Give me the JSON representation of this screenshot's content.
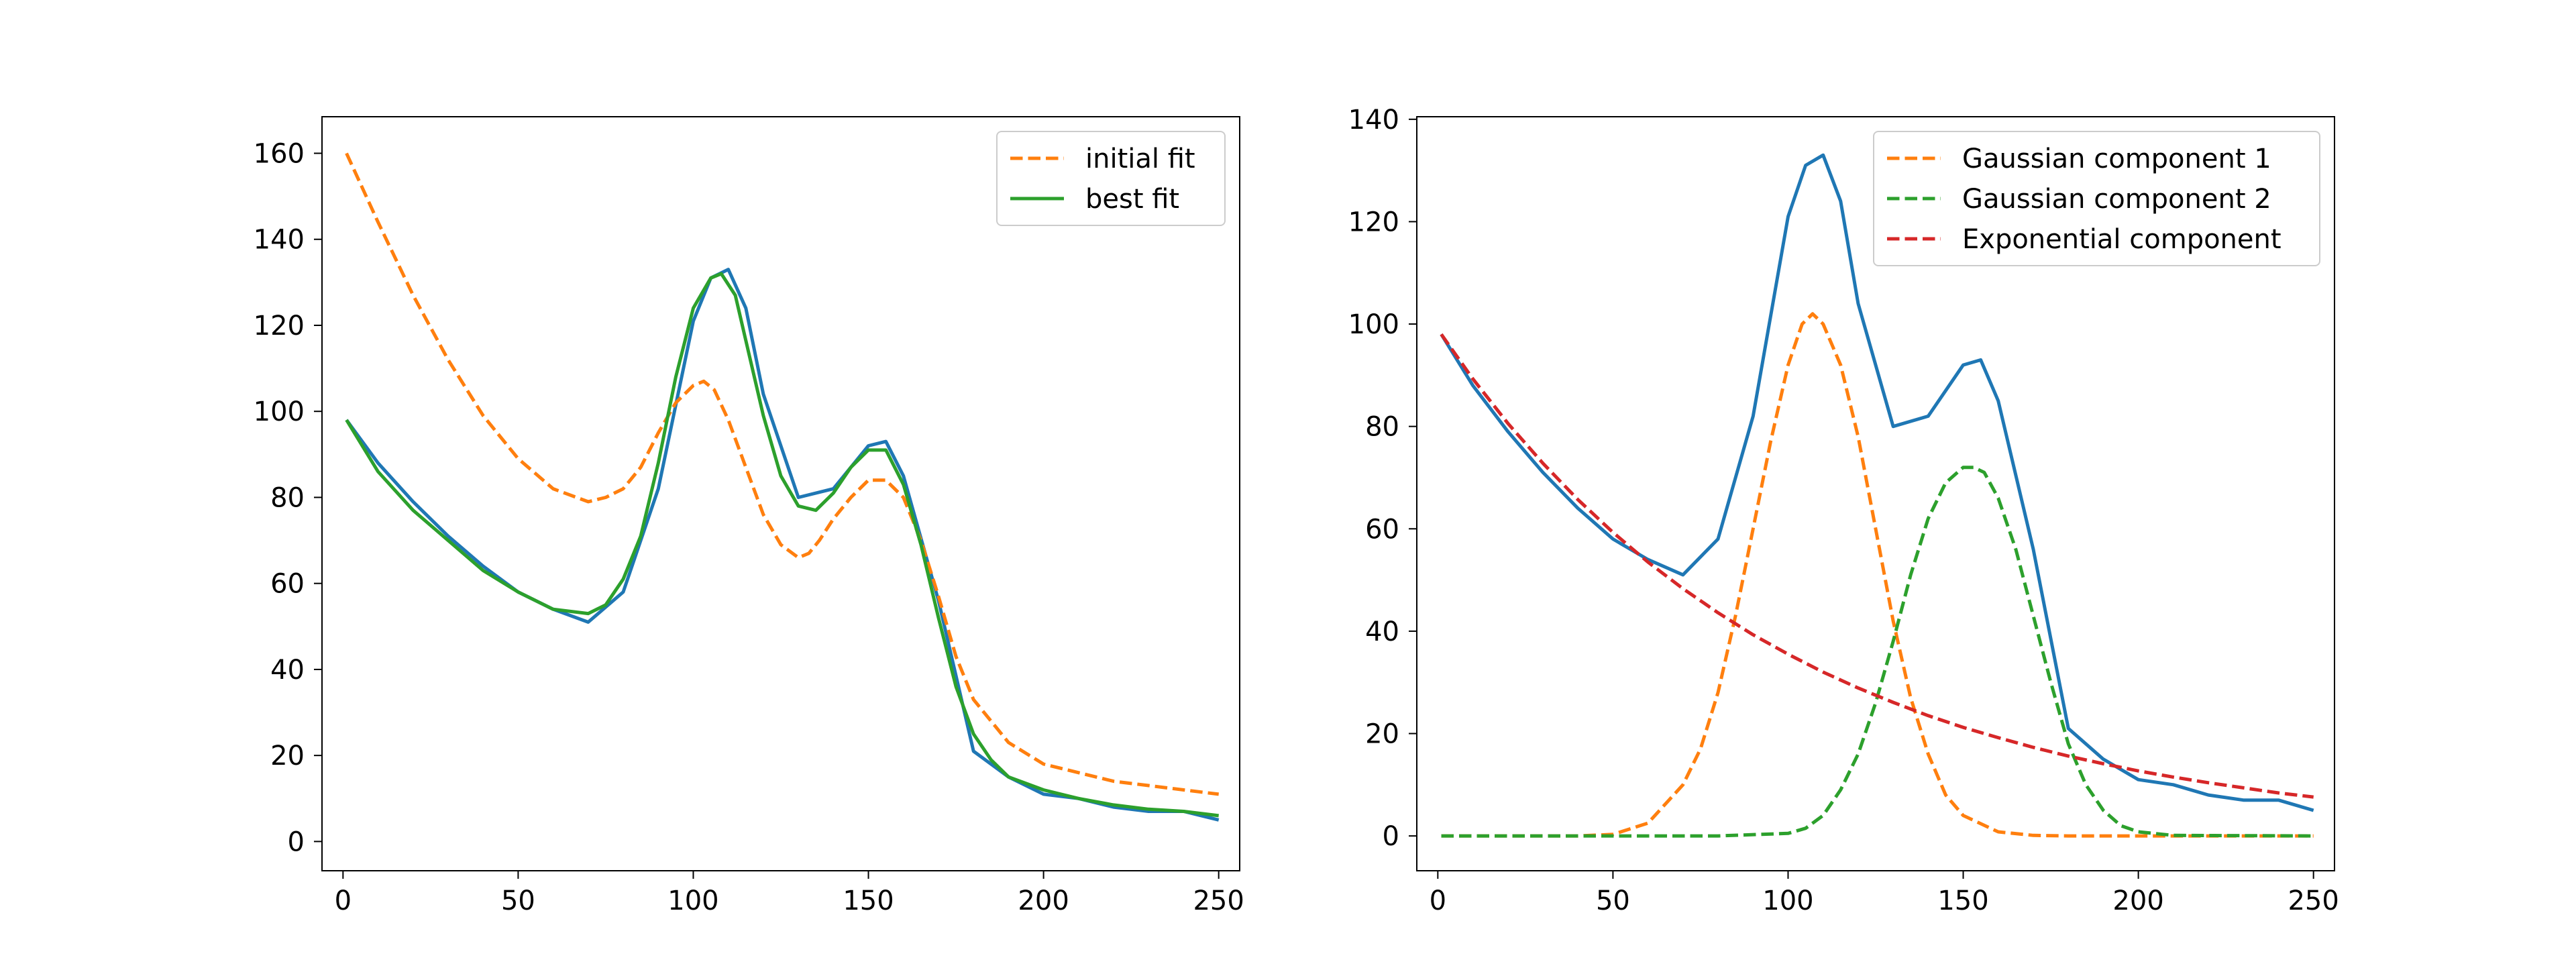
{
  "colors": {
    "data": "#1f77b4",
    "orange": "#ff7f0e",
    "green": "#2ca02c",
    "red": "#d62728",
    "axes": "#000000",
    "background": "#ffffff"
  },
  "chart_data": [
    {
      "type": "line",
      "title": "",
      "xlabel": "",
      "ylabel": "",
      "xlim": [
        -6,
        256
      ],
      "ylim": [
        -6.8,
        168.5
      ],
      "xticks": [
        0,
        50,
        100,
        150,
        200,
        250
      ],
      "yticks": [
        0,
        20,
        40,
        60,
        80,
        100,
        120,
        140,
        160
      ],
      "xtick_labels": [
        "0",
        "50",
        "100",
        "150",
        "200",
        "250"
      ],
      "ytick_labels": [
        "0",
        "20",
        "40",
        "60",
        "80",
        "100",
        "120",
        "140",
        "160"
      ],
      "grid": false,
      "legend_position": "top-right",
      "series": [
        {
          "role": "data",
          "color": "#1f77b4",
          "style": "solid",
          "x": [
            1,
            10,
            20,
            30,
            40,
            50,
            60,
            70,
            80,
            90,
            100,
            105,
            110,
            115,
            120,
            130,
            140,
            150,
            155,
            160,
            170,
            180,
            190,
            200,
            210,
            220,
            230,
            240,
            250
          ],
          "y": [
            98,
            88,
            79,
            71,
            64,
            58,
            54,
            51,
            58,
            82,
            121,
            131,
            133,
            124,
            104,
            80,
            82,
            92,
            93,
            85,
            56,
            21,
            15,
            11,
            10,
            8,
            7,
            7,
            5
          ]
        },
        {
          "name": "initial fit",
          "color": "#ff7f0e",
          "style": "dashed",
          "x": [
            1,
            10,
            20,
            30,
            40,
            50,
            60,
            70,
            75,
            80,
            85,
            90,
            95,
            100,
            103,
            106,
            110,
            115,
            120,
            125,
            130,
            133,
            136,
            140,
            145,
            150,
            155,
            160,
            165,
            170,
            175,
            180,
            190,
            200,
            210,
            220,
            230,
            240,
            250
          ],
          "y": [
            160,
            144,
            127,
            112,
            99,
            89,
            82,
            79,
            80,
            82,
            87,
            95,
            102,
            106,
            107,
            105,
            98,
            87,
            76,
            69,
            66,
            67,
            70,
            75,
            80,
            84,
            84,
            80,
            70,
            57,
            43,
            33,
            23,
            18,
            16,
            14,
            13,
            12,
            11
          ]
        },
        {
          "name": "best fit",
          "color": "#2ca02c",
          "style": "solid",
          "x": [
            1,
            10,
            20,
            30,
            40,
            50,
            60,
            70,
            75,
            80,
            85,
            90,
            95,
            100,
            105,
            108,
            112,
            116,
            120,
            125,
            130,
            135,
            140,
            145,
            150,
            155,
            160,
            165,
            170,
            175,
            180,
            185,
            190,
            200,
            210,
            220,
            230,
            240,
            250
          ],
          "y": [
            98,
            86,
            77,
            70,
            63,
            58,
            54,
            53,
            55,
            61,
            71,
            88,
            108,
            124,
            131,
            132,
            127,
            113,
            99,
            85,
            78,
            77,
            81,
            87,
            91,
            91,
            83,
            69,
            52,
            36,
            25,
            19,
            15,
            12,
            10,
            8.5,
            7.5,
            7,
            6
          ]
        }
      ],
      "legend": [
        "initial fit",
        "best fit"
      ]
    },
    {
      "type": "line",
      "title": "",
      "xlabel": "",
      "ylabel": "",
      "xlim": [
        -6,
        256
      ],
      "ylim": [
        -6.8,
        140.5
      ],
      "xticks": [
        0,
        50,
        100,
        150,
        200,
        250
      ],
      "yticks": [
        0,
        20,
        40,
        60,
        80,
        100,
        120,
        140
      ],
      "xtick_labels": [
        "0",
        "50",
        "100",
        "150",
        "200",
        "250"
      ],
      "ytick_labels": [
        "0",
        "20",
        "40",
        "60",
        "80",
        "100",
        "120",
        "140"
      ],
      "grid": false,
      "legend_position": "top-right",
      "series": [
        {
          "role": "data",
          "color": "#1f77b4",
          "style": "solid",
          "x": [
            1,
            10,
            20,
            30,
            40,
            50,
            60,
            70,
            80,
            90,
            100,
            105,
            110,
            115,
            120,
            130,
            140,
            150,
            155,
            160,
            170,
            180,
            190,
            200,
            210,
            220,
            230,
            240,
            250
          ],
          "y": [
            98,
            88,
            79,
            71,
            64,
            58,
            54,
            51,
            58,
            82,
            121,
            131,
            133,
            124,
            104,
            80,
            82,
            92,
            93,
            85,
            56,
            21,
            15,
            11,
            10,
            8,
            7,
            7,
            5
          ]
        },
        {
          "name": "Gaussian component 1",
          "color": "#ff7f0e",
          "style": "dashed",
          "x": [
            1,
            20,
            40,
            50,
            60,
            70,
            75,
            80,
            85,
            90,
            95,
            100,
            104,
            107,
            110,
            115,
            120,
            125,
            130,
            135,
            140,
            145,
            150,
            160,
            170,
            180,
            200,
            220,
            250
          ],
          "y": [
            0,
            0,
            0,
            0.3,
            2.5,
            10,
            17,
            28,
            43,
            60,
            77,
            92,
            100,
            102,
            100,
            92,
            78,
            60,
            42,
            27,
            16,
            8,
            4,
            0.8,
            0.1,
            0,
            0,
            0,
            0
          ]
        },
        {
          "name": "Gaussian component 2",
          "color": "#2ca02c",
          "style": "dashed",
          "x": [
            1,
            50,
            80,
            100,
            105,
            110,
            115,
            120,
            125,
            130,
            135,
            140,
            145,
            150,
            153,
            156,
            160,
            165,
            170,
            175,
            180,
            185,
            190,
            195,
            200,
            210,
            250
          ],
          "y": [
            0,
            0,
            0,
            0.5,
            1.5,
            4,
            9,
            16,
            26,
            38,
            51,
            62,
            69,
            72,
            72,
            71,
            66,
            56,
            43,
            30,
            18,
            10,
            5,
            2,
            0.8,
            0.1,
            0
          ]
        },
        {
          "name": "Exponential component",
          "color": "#d62728",
          "style": "dashed",
          "x": [
            1,
            10,
            20,
            30,
            40,
            50,
            60,
            70,
            80,
            90,
            100,
            110,
            120,
            130,
            140,
            150,
            160,
            170,
            180,
            190,
            200,
            210,
            220,
            230,
            240,
            250
          ],
          "y": [
            98,
            89.3,
            80.6,
            72.8,
            65.7,
            59.3,
            53.5,
            48.3,
            43.6,
            39.3,
            35.5,
            32.0,
            28.9,
            26.1,
            23.5,
            21.2,
            19.2,
            17.3,
            15.6,
            14.1,
            12.7,
            11.5,
            10.4,
            9.4,
            8.4,
            7.6
          ]
        }
      ],
      "legend": [
        "Gaussian component 1",
        "Gaussian component 2",
        "Exponential component"
      ]
    }
  ]
}
